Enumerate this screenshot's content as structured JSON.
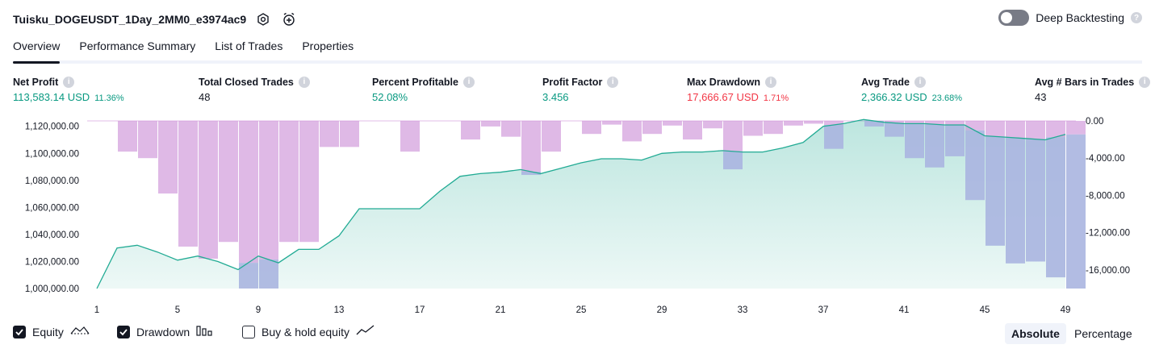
{
  "header": {
    "strategy_name": "Tuisku_DOGEUSDT_1Day_2MM0_e3974ac9",
    "deep_backtesting_label": "Deep Backtesting",
    "help_glyph": "?"
  },
  "tabs": [
    {
      "label": "Overview",
      "active": true
    },
    {
      "label": "Performance Summary",
      "active": false
    },
    {
      "label": "List of Trades",
      "active": false
    },
    {
      "label": "Properties",
      "active": false
    }
  ],
  "metrics": [
    {
      "label": "Net Profit",
      "value": "113,583.14 USD",
      "pct": "11.36%",
      "color": "#089981"
    },
    {
      "label": "Total Closed Trades",
      "value": "48",
      "pct": "",
      "color": "#131722"
    },
    {
      "label": "Percent Profitable",
      "value": "52.08%",
      "pct": "",
      "color": "#089981"
    },
    {
      "label": "Profit Factor",
      "value": "3.456",
      "pct": "",
      "color": "#089981"
    },
    {
      "label": "Max Drawdown",
      "value": "17,666.67 USD",
      "pct": "1.71%",
      "color": "#f23645"
    },
    {
      "label": "Avg Trade",
      "value": "2,366.32 USD",
      "pct": "23.68%",
      "color": "#089981"
    },
    {
      "label": "Avg # Bars in Trades",
      "value": "43",
      "pct": "",
      "color": "#131722"
    }
  ],
  "chart_data": {
    "type": "area",
    "x": [
      1,
      2,
      3,
      4,
      5,
      6,
      7,
      8,
      9,
      10,
      11,
      12,
      13,
      14,
      15,
      16,
      17,
      18,
      19,
      20,
      21,
      22,
      23,
      24,
      25,
      26,
      27,
      28,
      29,
      30,
      31,
      32,
      33,
      34,
      35,
      36,
      37,
      38,
      39,
      40,
      41,
      42,
      43,
      44,
      45,
      46,
      47,
      48,
      49
    ],
    "x_tick_labels": [
      "1",
      "5",
      "9",
      "13",
      "17",
      "21",
      "25",
      "29",
      "33",
      "37",
      "41",
      "45",
      "49"
    ],
    "left_axis": {
      "ylim": [
        1000000,
        1124000
      ],
      "tick_labels": [
        "1,120,000.00",
        "1,100,000.00",
        "1,080,000.00",
        "1,060,000.00",
        "1,040,000.00",
        "1,020,000.00",
        "1,000,000.00"
      ]
    },
    "right_axis": {
      "ylim": [
        -18000,
        0
      ],
      "tick_labels": [
        "0.00",
        "-4,000.00",
        "-8,000.00",
        "-12,000.00",
        "-16,000.00"
      ]
    },
    "series": [
      {
        "name": "Equity",
        "axis": "left",
        "color": "#22ab94",
        "values": [
          1000000,
          1030000,
          1032000,
          1027000,
          1021000,
          1024000,
          1020000,
          1014000,
          1024000,
          1019000,
          1029000,
          1029000,
          1039000,
          1059000,
          1059000,
          1059000,
          1059000,
          1072000,
          1083000,
          1085000,
          1086000,
          1088000,
          1085000,
          1089000,
          1093000,
          1096000,
          1096000,
          1095000,
          1100000,
          1101000,
          1101000,
          1102000,
          1101000,
          1101000,
          1104000,
          1108000,
          1120000,
          1122000,
          1125000,
          1123000,
          1122000,
          1122000,
          1121000,
          1121000,
          1113000,
          1112000,
          1111000,
          1110000,
          1114000
        ]
      },
      {
        "name": "Drawdown",
        "axis": "right",
        "color": "#ce93d8",
        "values": [
          0,
          -3300,
          -4000,
          -7800,
          -13500,
          -14800,
          -13000,
          -18000,
          -18000,
          -13000,
          -13000,
          -2800,
          -2800,
          0,
          0,
          -3300,
          0,
          0,
          -2000,
          -600,
          -1700,
          -5800,
          -3300,
          0,
          -1400,
          -400,
          -2200,
          -1400,
          -500,
          -2000,
          -800,
          -5200,
          -1600,
          -1400,
          -500,
          -300,
          -3000,
          0,
          -600,
          -1700,
          -4000,
          -5000,
          -3800,
          -8500,
          -13400,
          -15300,
          -15100,
          -16800,
          -18000
        ]
      }
    ],
    "drawdown_overlap_color": "#aab5e0"
  },
  "legend": {
    "items": [
      {
        "label": "Equity",
        "checked": true
      },
      {
        "label": "Drawdown",
        "checked": true
      },
      {
        "label": "Buy & hold equity",
        "checked": false
      }
    ]
  },
  "modes": {
    "absolute": "Absolute",
    "percentage": "Percentage"
  }
}
